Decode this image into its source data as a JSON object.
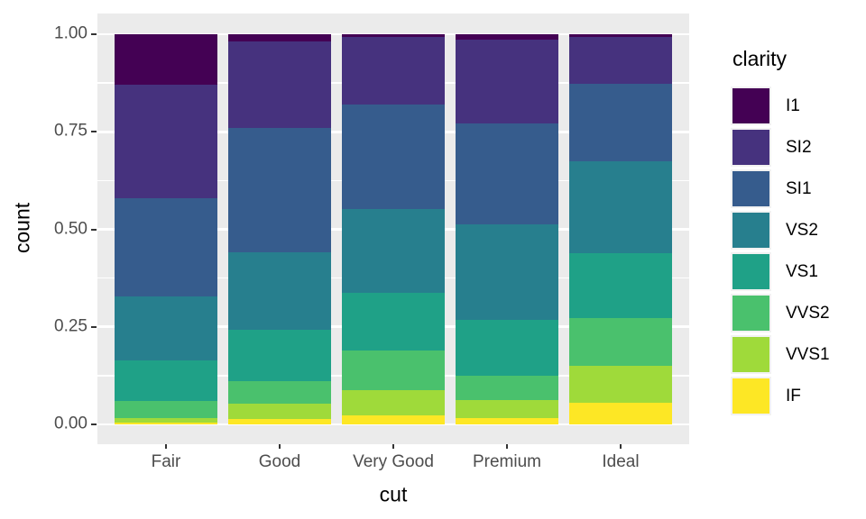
{
  "figure": {
    "background": "#FFFFFF",
    "panel_background": "#EBEBEB",
    "gridline_color": "#FFFFFF",
    "axis_text_color": "#4D4D4D",
    "axis_title_color": "#000000",
    "tick_mark_color": "#333333"
  },
  "chart_data": {
    "type": "bar",
    "variant": "stacked-normalized",
    "title": "",
    "xlabel": "cut",
    "ylabel": "count",
    "ylim": [
      0,
      1
    ],
    "grid": {
      "major": [
        0,
        0.25,
        0.5,
        0.75,
        1
      ],
      "minor": [
        0.125,
        0.375,
        0.625,
        0.875
      ],
      "visible": true
    },
    "categories": [
      "Fair",
      "Good",
      "Very Good",
      "Premium",
      "Ideal"
    ],
    "y_ticks": [
      {
        "label": "0.00",
        "value": 0
      },
      {
        "label": "0.25",
        "value": 0.25
      },
      {
        "label": "0.50",
        "value": 0.5
      },
      {
        "label": "0.75",
        "value": 0.75
      },
      {
        "label": "1.00",
        "value": 1
      }
    ],
    "stack_order": "first_series_on_top",
    "series": [
      {
        "name": "I1",
        "color": "#440154",
        "values": [
          0.1304,
          0.0196,
          0.007,
          0.0149,
          0.0068
        ]
      },
      {
        "name": "SI2",
        "color": "#46327E",
        "values": [
          0.2894,
          0.2203,
          0.1738,
          0.2138,
          0.1206
        ]
      },
      {
        "name": "SI1",
        "color": "#365C8D",
        "values": [
          0.2534,
          0.318,
          0.2682,
          0.2592,
          0.1987
        ]
      },
      {
        "name": "VS2",
        "color": "#277F8E",
        "values": [
          0.1621,
          0.1994,
          0.2144,
          0.2434,
          0.2353
        ]
      },
      {
        "name": "VS1",
        "color": "#1FA187",
        "values": [
          0.1056,
          0.1321,
          0.1469,
          0.1442,
          0.1665
        ]
      },
      {
        "name": "VVS2",
        "color": "#4AC16D",
        "values": [
          0.0429,
          0.0583,
          0.1022,
          0.0631,
          0.1209
        ]
      },
      {
        "name": "VVS1",
        "color": "#9FDA3A",
        "values": [
          0.0106,
          0.0379,
          0.0653,
          0.0447,
          0.095
        ]
      },
      {
        "name": "IF",
        "color": "#FDE725",
        "values": [
          0.0056,
          0.0145,
          0.0222,
          0.0167,
          0.0562
        ]
      }
    ],
    "legend": {
      "title": "clarity",
      "position": "right",
      "entries": [
        "I1",
        "SI2",
        "SI1",
        "VS2",
        "VS1",
        "VVS2",
        "VVS1",
        "IF"
      ]
    }
  }
}
